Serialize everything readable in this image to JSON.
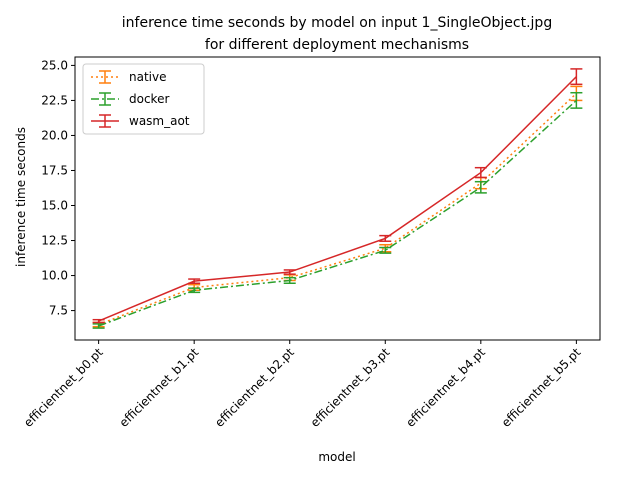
{
  "chart_data": {
    "type": "line",
    "title": "inference time seconds by model on input 1_SingleObject.jpg",
    "subtitle": "for different deployment mechanisms",
    "xlabel": "model",
    "ylabel": "inference time seconds",
    "categories": [
      "efficientnet_b0.pt",
      "efficientnet_b1.pt",
      "efficientnet_b2.pt",
      "efficientnet_b3.pt",
      "efficientnet_b4.pt",
      "efficientnet_b5.pt"
    ],
    "ylim": [
      5.4,
      25.6
    ],
    "yticks": [
      7.5,
      10.0,
      12.5,
      15.0,
      17.5,
      20.0,
      22.5,
      25.0
    ],
    "ytick_labels": [
      "7.5",
      "10.0",
      "12.5",
      "15.0",
      "17.5",
      "20.0",
      "22.5",
      "25.0"
    ],
    "grid": false,
    "legend_position": "top-left",
    "series": [
      {
        "name": "native",
        "color": "#ff7f0e",
        "linestyle": "dotted",
        "values": [
          6.5,
          9.15,
          9.85,
          11.95,
          16.6,
          23.0
        ],
        "errors": [
          0.15,
          0.2,
          0.2,
          0.25,
          0.4,
          0.5
        ]
      },
      {
        "name": "docker",
        "color": "#2ca02c",
        "linestyle": "dashdot",
        "values": [
          6.4,
          8.95,
          9.65,
          11.8,
          16.3,
          22.5
        ],
        "errors": [
          0.15,
          0.15,
          0.2,
          0.2,
          0.4,
          0.55
        ]
      },
      {
        "name": "wasm_aot",
        "color": "#d62728",
        "linestyle": "solid",
        "values": [
          6.75,
          9.6,
          10.25,
          12.65,
          17.35,
          24.2
        ],
        "errors": [
          0.1,
          0.15,
          0.15,
          0.2,
          0.35,
          0.55
        ]
      }
    ]
  }
}
